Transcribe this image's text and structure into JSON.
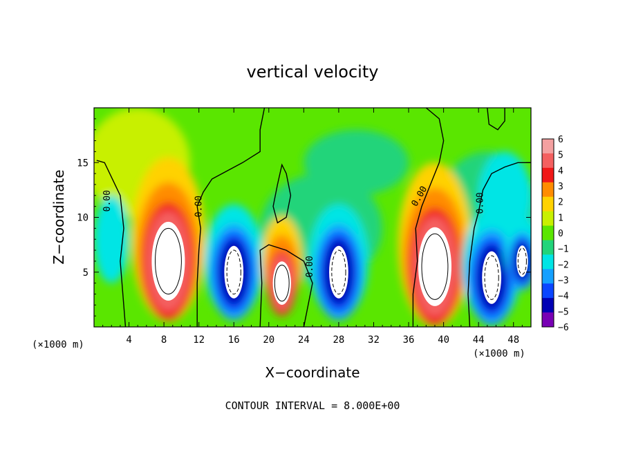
{
  "chart_data": {
    "type": "heatmap",
    "title": "vertical velocity",
    "xlabel": "X−coordinate",
    "ylabel": "Z−coordinate",
    "x_unit_label": "(×1000 m)",
    "x_ticks": [
      "4",
      "8",
      "12",
      "16",
      "20",
      "24",
      "28",
      "32",
      "36",
      "40",
      "44",
      "48"
    ],
    "x_tick_values": [
      4,
      8,
      12,
      16,
      20,
      24,
      28,
      32,
      36,
      40,
      44,
      48
    ],
    "y_ticks": [
      "5",
      "10",
      "15"
    ],
    "y_tick_values": [
      5,
      10,
      15
    ],
    "xlim": [
      0,
      50
    ],
    "ylim": [
      0,
      20
    ],
    "colorbar": {
      "ticks": [
        "6",
        "5",
        "4",
        "3",
        "2",
        "1",
        "0",
        "−1",
        "−2",
        "−3",
        "−4",
        "−5",
        "−6"
      ],
      "levels": [
        6,
        5,
        4,
        3,
        2,
        1,
        0,
        -1,
        -2,
        -3,
        -4,
        -5,
        -6
      ],
      "colors": [
        "#f4a0a0",
        "#f46060",
        "#f01818",
        "#ff8c00",
        "#ffd200",
        "#c8f000",
        "#5ae600",
        "#22d47a",
        "#00e5e5",
        "#14a0ff",
        "#0a46ff",
        "#0000b4",
        "#7800b4"
      ]
    },
    "contour_labels": [
      "0.00",
      "0.00",
      "0.00",
      "0.00",
      "0.00",
      "0.00"
    ],
    "features": [
      {
        "kind": "updraft",
        "x": 8.5,
        "z": 6.0,
        "peak": 6
      },
      {
        "kind": "downdraft",
        "x": 16.0,
        "z": 5.0,
        "peak": -6
      },
      {
        "kind": "updraft",
        "x": 21.5,
        "z": 4.0,
        "peak": 6
      },
      {
        "kind": "downdraft",
        "x": 28.0,
        "z": 5.0,
        "peak": -6
      },
      {
        "kind": "updraft",
        "x": 39.0,
        "z": 5.5,
        "peak": 6
      },
      {
        "kind": "downdraft",
        "x": 45.5,
        "z": 4.5,
        "peak": -6
      },
      {
        "kind": "downdraft",
        "x": 49.0,
        "z": 6.0,
        "peak": -6
      }
    ]
  },
  "footer": {
    "contour_interval": "CONTOUR INTERVAL = 8.000E+00"
  }
}
